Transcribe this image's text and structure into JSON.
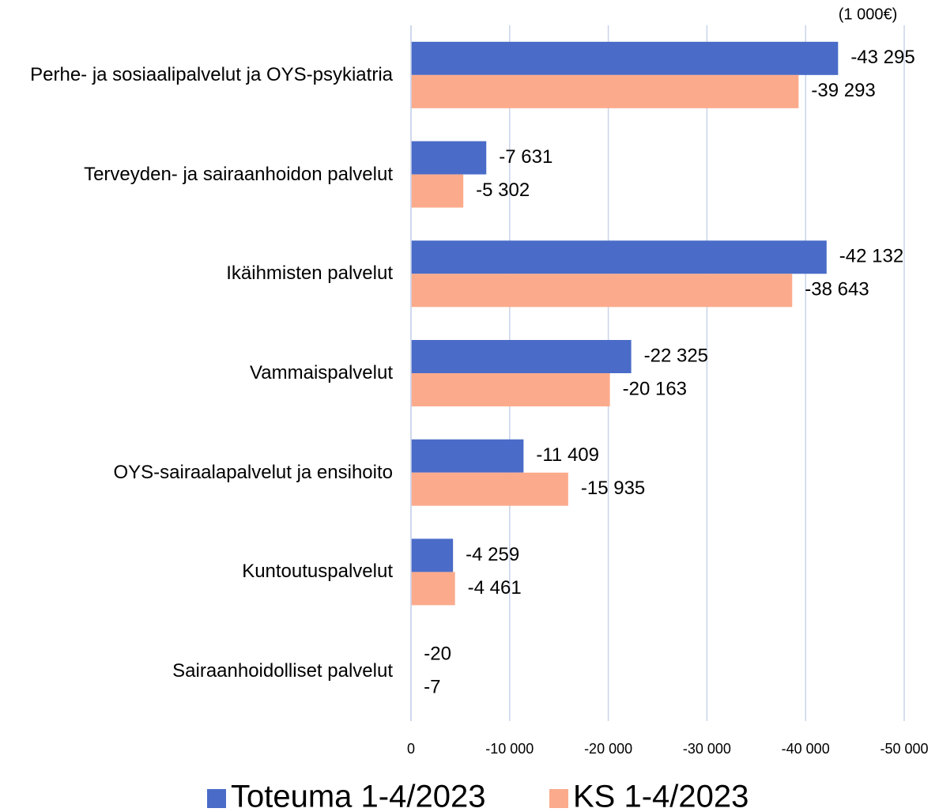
{
  "chart_data": {
    "type": "barh",
    "unit_label": "(1 000€)",
    "categories": [
      "Perhe- ja sosiaalipalvelut ja OYS-psykiatria",
      "Terveyden- ja sairaanhoidon palvelut",
      "Ikäihmisten palvelut",
      "Vammaispalvelut",
      "OYS-sairaalapalvelut ja ensihoito",
      "Kuntoutuspalvelut",
      "Sairaanhoidolliset palvelut"
    ],
    "series": [
      {
        "name": "Toteuma 1-4/2023",
        "color": "#4a6cc8",
        "values": [
          -43295,
          -7631,
          -42132,
          -22325,
          -11409,
          -4259,
          -20
        ],
        "value_labels": [
          "-43 295",
          "-7 631",
          "-42 132",
          "-22 325",
          "-11 409",
          "-4 259",
          "-20"
        ]
      },
      {
        "name": "KS 1-4/2023",
        "color": "#fbab8c",
        "values": [
          -39293,
          -5302,
          -38643,
          -20163,
          -15935,
          -4461,
          -7
        ],
        "value_labels": [
          "-39 293",
          "-5 302",
          "-38 643",
          "-20 163",
          "-15 935",
          "-4 461",
          "-7"
        ]
      }
    ],
    "xlim": [
      0,
      -50000
    ],
    "xticks": [
      0,
      {
        "value": -10000,
        "label": "-10 000"
      },
      {
        "value": -20000,
        "label": "-20 000"
      },
      {
        "value": -30000,
        "label": "-30 000"
      },
      {
        "value": -40000,
        "label": "-40 000"
      },
      {
        "value": -50000,
        "label": "-50 000"
      }
    ],
    "grid": true,
    "legend": "bottom"
  }
}
